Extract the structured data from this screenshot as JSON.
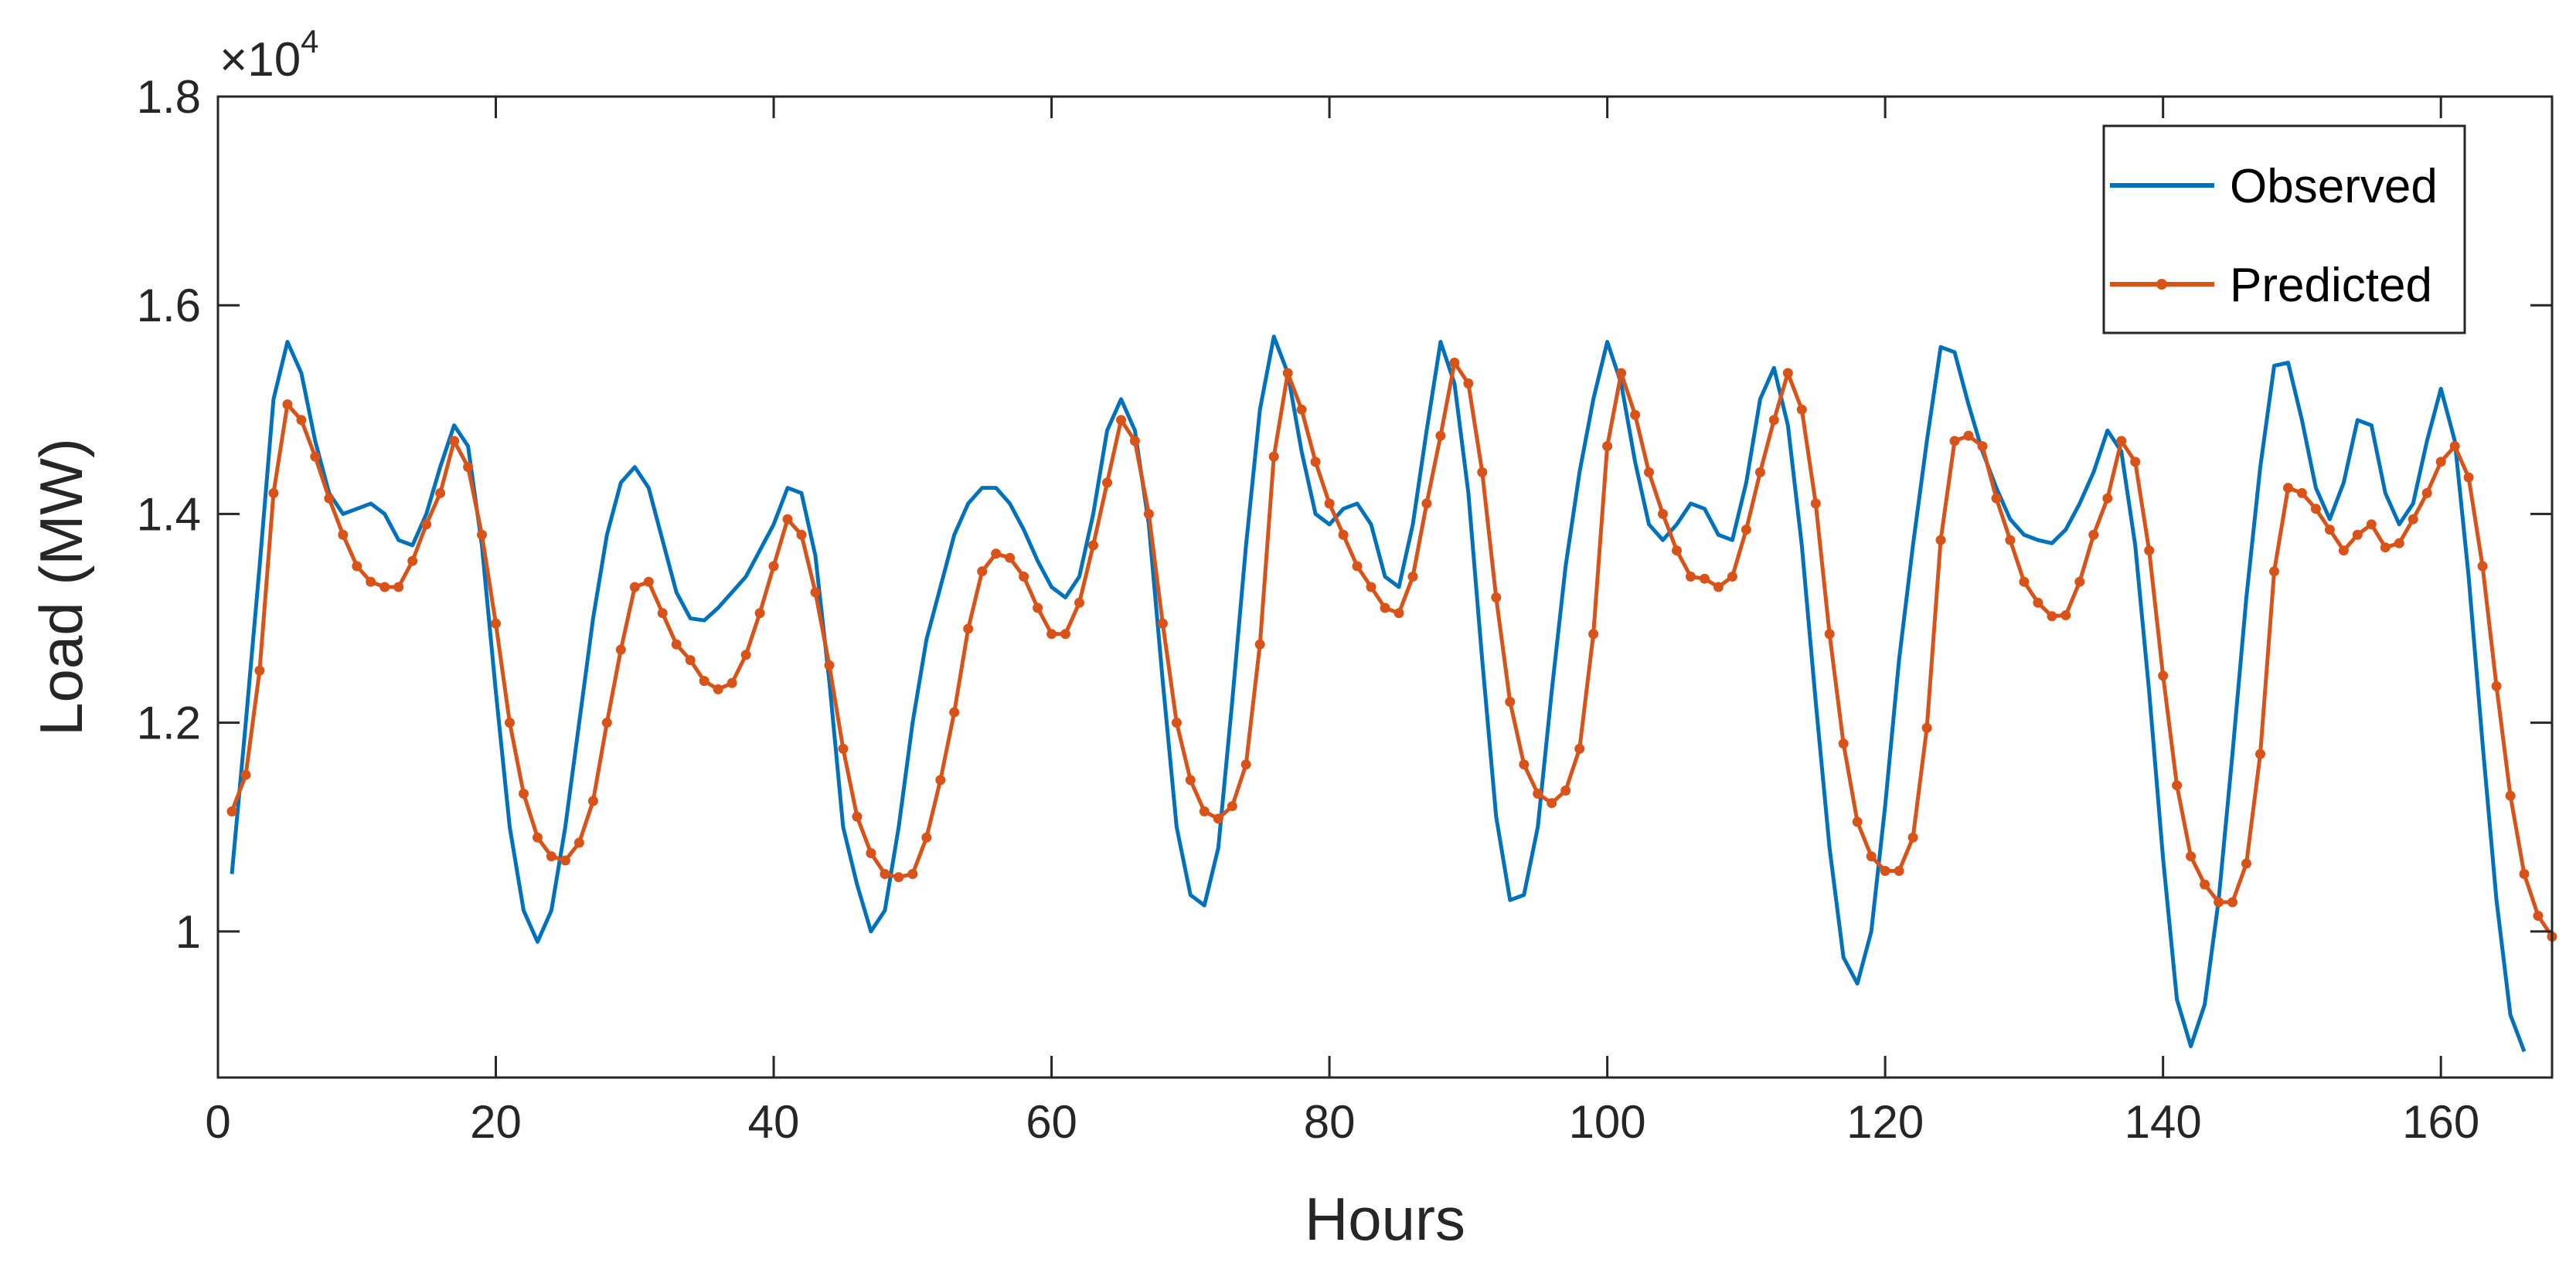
{
  "chart_data": {
    "type": "line",
    "xlabel": "Hours",
    "ylabel": "Load (MW)",
    "xlim": [
      0,
      168
    ],
    "ylim": [
      0.86,
      1.8
    ],
    "y_multiplier": "×10",
    "y_multiplier_exp": "4",
    "x_ticks": [
      0,
      20,
      40,
      60,
      80,
      100,
      120,
      140,
      160
    ],
    "x_tick_labels": [
      "0",
      "20",
      "40",
      "60",
      "80",
      "100",
      "120",
      "140",
      "160"
    ],
    "y_ticks": [
      1.0,
      1.2,
      1.4,
      1.6,
      1.8
    ],
    "y_tick_labels": [
      "1",
      "1.2",
      "1.4",
      "1.6",
      "1.8"
    ],
    "legend_position": "top-right",
    "grid": false,
    "series": [
      {
        "name": "Observed",
        "color": "#0072BD",
        "marker": false,
        "values": [
          1.055,
          1.2,
          1.35,
          1.51,
          1.565,
          1.535,
          1.47,
          1.42,
          1.4,
          1.405,
          1.41,
          1.4,
          1.375,
          1.37,
          1.4,
          1.445,
          1.485,
          1.465,
          1.37,
          1.23,
          1.1,
          1.02,
          0.99,
          1.02,
          1.1,
          1.2,
          1.3,
          1.38,
          1.43,
          1.445,
          1.425,
          1.375,
          1.325,
          1.3,
          1.298,
          1.31,
          1.325,
          1.34,
          1.365,
          1.39,
          1.425,
          1.42,
          1.36,
          1.24,
          1.1,
          1.045,
          1.0,
          1.02,
          1.1,
          1.2,
          1.28,
          1.33,
          1.38,
          1.41,
          1.425,
          1.425,
          1.41,
          1.385,
          1.355,
          1.33,
          1.32,
          1.34,
          1.4,
          1.48,
          1.51,
          1.48,
          1.39,
          1.24,
          1.1,
          1.035,
          1.025,
          1.08,
          1.22,
          1.37,
          1.5,
          1.57,
          1.535,
          1.46,
          1.4,
          1.39,
          1.405,
          1.41,
          1.39,
          1.34,
          1.33,
          1.39,
          1.48,
          1.565,
          1.525,
          1.42,
          1.26,
          1.11,
          1.03,
          1.035,
          1.1,
          1.23,
          1.35,
          1.44,
          1.51,
          1.565,
          1.525,
          1.45,
          1.39,
          1.375,
          1.39,
          1.41,
          1.405,
          1.38,
          1.375,
          1.43,
          1.51,
          1.54,
          1.485,
          1.37,
          1.22,
          1.08,
          0.975,
          0.95,
          1.0,
          1.12,
          1.26,
          1.37,
          1.47,
          1.56,
          1.555,
          1.505,
          1.46,
          1.425,
          1.395,
          1.38,
          1.375,
          1.372,
          1.385,
          1.41,
          1.44,
          1.48,
          1.46,
          1.37,
          1.23,
          1.07,
          0.935,
          0.89,
          0.93,
          1.03,
          1.17,
          1.32,
          1.445,
          1.542,
          1.545,
          1.49,
          1.425,
          1.395,
          1.43,
          1.49,
          1.485,
          1.42,
          1.39,
          1.41,
          1.47,
          1.52,
          1.47,
          1.34,
          1.18,
          1.03,
          0.92,
          0.885
        ]
      },
      {
        "name": "Predicted",
        "color": "#D95319",
        "marker": true,
        "values": [
          1.115,
          1.15,
          1.25,
          1.42,
          1.505,
          1.49,
          1.455,
          1.415,
          1.38,
          1.35,
          1.335,
          1.33,
          1.33,
          1.355,
          1.39,
          1.42,
          1.47,
          1.445,
          1.38,
          1.295,
          1.2,
          1.132,
          1.09,
          1.072,
          1.068,
          1.085,
          1.125,
          1.2,
          1.27,
          1.33,
          1.335,
          1.305,
          1.275,
          1.26,
          1.24,
          1.232,
          1.238,
          1.265,
          1.305,
          1.35,
          1.395,
          1.38,
          1.325,
          1.255,
          1.175,
          1.11,
          1.075,
          1.055,
          1.052,
          1.055,
          1.09,
          1.145,
          1.21,
          1.29,
          1.345,
          1.362,
          1.358,
          1.34,
          1.31,
          1.285,
          1.285,
          1.315,
          1.37,
          1.43,
          1.49,
          1.47,
          1.4,
          1.295,
          1.2,
          1.145,
          1.115,
          1.108,
          1.12,
          1.16,
          1.275,
          1.455,
          1.535,
          1.5,
          1.45,
          1.41,
          1.38,
          1.35,
          1.33,
          1.31,
          1.305,
          1.34,
          1.41,
          1.475,
          1.545,
          1.525,
          1.44,
          1.32,
          1.22,
          1.16,
          1.132,
          1.123,
          1.135,
          1.175,
          1.285,
          1.465,
          1.535,
          1.495,
          1.44,
          1.4,
          1.365,
          1.34,
          1.338,
          1.33,
          1.34,
          1.385,
          1.44,
          1.49,
          1.535,
          1.5,
          1.41,
          1.285,
          1.18,
          1.105,
          1.072,
          1.058,
          1.058,
          1.09,
          1.195,
          1.375,
          1.47,
          1.475,
          1.465,
          1.415,
          1.375,
          1.335,
          1.315,
          1.302,
          1.303,
          1.335,
          1.38,
          1.415,
          1.47,
          1.45,
          1.365,
          1.245,
          1.14,
          1.072,
          1.045,
          1.028,
          1.028,
          1.065,
          1.17,
          1.345,
          1.425,
          1.42,
          1.405,
          1.385,
          1.365,
          1.38,
          1.39,
          1.368,
          1.372,
          1.395,
          1.42,
          1.45,
          1.465,
          1.435,
          1.35,
          1.235,
          1.13,
          1.055,
          1.015,
          0.995
        ]
      }
    ]
  }
}
